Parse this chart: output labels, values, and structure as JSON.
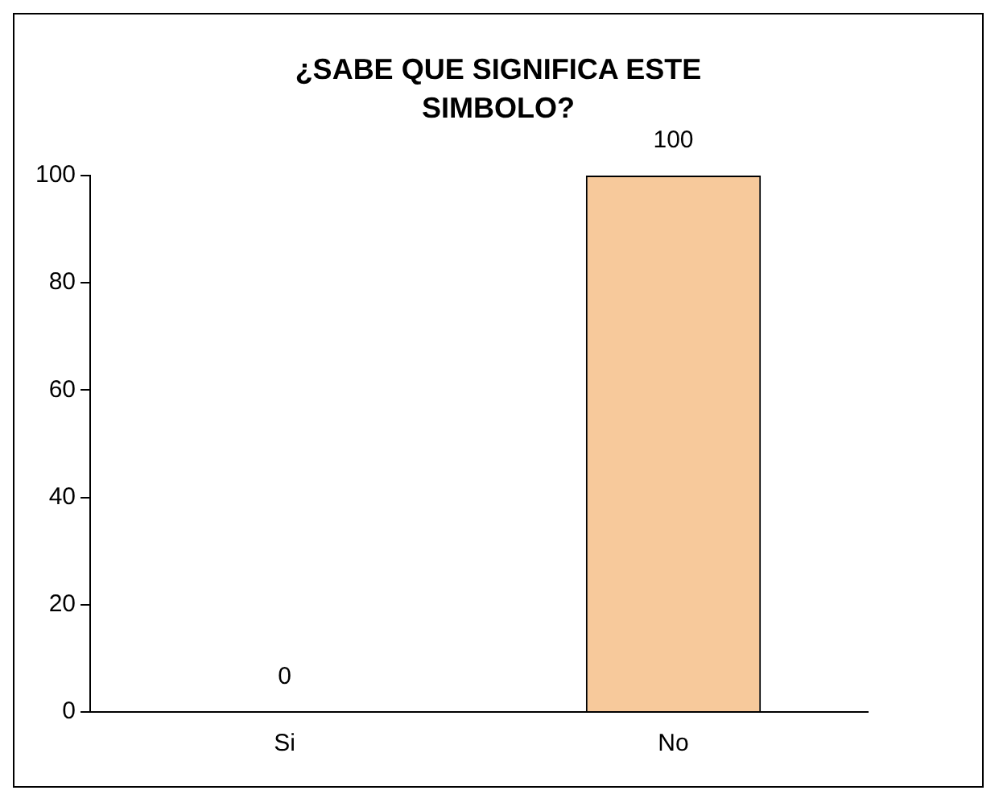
{
  "chart_data": {
    "type": "bar",
    "title": "¿SABE QUE SIGNIFICA ESTE SIMBOLO?",
    "categories": [
      "Si",
      "No"
    ],
    "values": [
      0,
      100
    ],
    "colors": [
      "#7b7bd9",
      "#f7c99b"
    ],
    "ylim": [
      0,
      100
    ],
    "yticks": [
      0,
      20,
      40,
      60,
      80,
      100
    ],
    "grid": false,
    "legend": false,
    "data_labels": true
  }
}
